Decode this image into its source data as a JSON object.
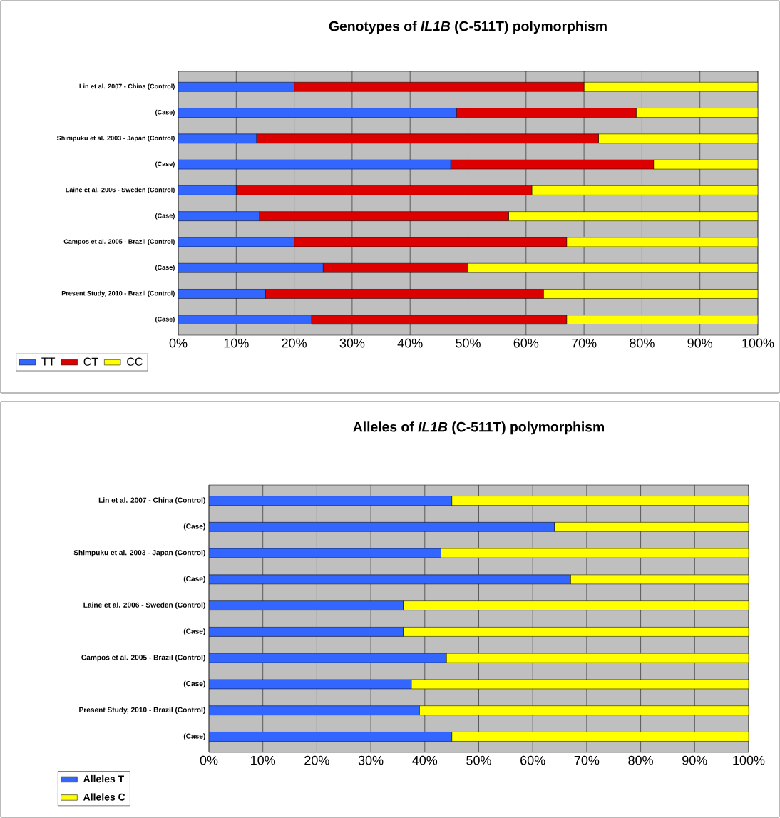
{
  "chart_data": [
    {
      "type": "bar",
      "orientation": "horizontal",
      "stacked": true,
      "title": "Genotypes of *IL1B* (C-511T) polymorphism",
      "categories": [
        "Lin et al. 2007 - China (Control)",
        "(Case)",
        "Shimpuku et al. 2003 - Japan (Control)",
        "(Case)",
        "Laine et al. 2006 - Sweden  (Control)",
        "(Case)",
        "Campos et al. 2005 - Brazil  (Control)",
        "(Case)",
        "Present Study, 2010 - Brazil (Control)",
        "(Case)"
      ],
      "series": [
        {
          "name": "TT",
          "color": "#3366ff",
          "values": [
            20,
            48,
            13.5,
            47,
            10,
            14,
            20,
            25,
            15,
            23
          ]
        },
        {
          "name": "CT",
          "color": "#dd0000",
          "values": [
            50,
            31,
            59,
            35,
            51,
            43,
            47,
            25,
            48,
            44
          ]
        },
        {
          "name": "CC",
          "color": "#ffff00",
          "values": [
            30,
            21,
            27.5,
            18,
            39,
            43,
            33,
            50,
            37,
            33
          ]
        }
      ],
      "xlim": [
        0,
        100
      ],
      "xticks": [
        {
          "value": 0,
          "label": "0%"
        },
        {
          "value": 10,
          "label": "10%"
        },
        {
          "value": 20,
          "label": "20%"
        },
        {
          "value": 30,
          "label": "30%"
        },
        {
          "value": 40,
          "label": "40%"
        },
        {
          "value": 50,
          "label": "50%"
        },
        {
          "value": 60,
          "label": "60%"
        },
        {
          "value": 70,
          "label": "70%"
        },
        {
          "value": 80,
          "label": "80%"
        },
        {
          "value": 90,
          "label": "90%"
        },
        {
          "value": 100,
          "label": "100%"
        }
      ],
      "grid": "x",
      "legend": "bottom left"
    },
    {
      "type": "bar",
      "orientation": "horizontal",
      "stacked": true,
      "title": "Alleles of *IL1B* (C-511T) polymorphism",
      "categories": [
        "Lin et al. 2007 - China (Control)",
        "(Case)",
        "Shimpuku et al. 2003 - Japan (Control)",
        "(Case)",
        "Laine et al. 2006 - Sweden (Control)",
        "(Case)",
        "Campos et al. 2005 - Brazil (Control)",
        "(Case)",
        "Present Study, 2010 - Brazil (Control)",
        "(Case)"
      ],
      "series": [
        {
          "name": "Alleles T",
          "color": "#3366ff",
          "values": [
            45,
            64,
            43,
            67,
            36,
            36,
            44,
            37.5,
            39,
            45
          ]
        },
        {
          "name": "Alleles C",
          "color": "#ffff00",
          "values": [
            55,
            36,
            57,
            33,
            64,
            64,
            56,
            62.5,
            61,
            55
          ]
        }
      ],
      "xlim": [
        0,
        100
      ],
      "xticks": [
        {
          "value": 0,
          "label": "0%"
        },
        {
          "value": 10,
          "label": "10%"
        },
        {
          "value": 20,
          "label": "20%"
        },
        {
          "value": 30,
          "label": "30%"
        },
        {
          "value": 40,
          "label": "40%"
        },
        {
          "value": 50,
          "label": "50%"
        },
        {
          "value": 60,
          "label": "60%"
        },
        {
          "value": 70,
          "label": "70%"
        },
        {
          "value": 80,
          "label": "80%"
        },
        {
          "value": 90,
          "label": "90%"
        },
        {
          "value": 100,
          "label": "100%"
        }
      ],
      "grid": "x",
      "legend": "bottom left"
    }
  ]
}
